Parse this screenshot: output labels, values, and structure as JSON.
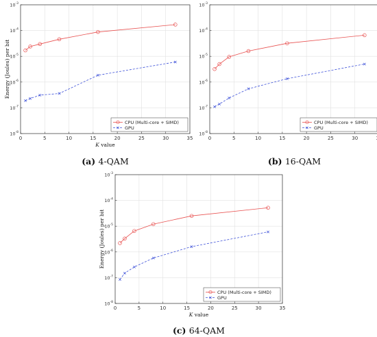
{
  "chart_data": [
    {
      "type": "line",
      "caption_tag": "(a)",
      "caption_label": "4-QAM",
      "xlabel": "K value",
      "ylabel": "Energy (Joules) per bit",
      "xlim": [
        0,
        35
      ],
      "ylim": [
        1e-08,
        0.001
      ],
      "yscale": "log",
      "xticks": [
        "0",
        "5",
        "10",
        "15",
        "20",
        "25",
        "30",
        "35"
      ],
      "yticks": [
        {
          "base": "10",
          "exp": "-8"
        },
        {
          "base": "10",
          "exp": "-7"
        },
        {
          "base": "10",
          "exp": "-6"
        },
        {
          "base": "10",
          "exp": "-5"
        },
        {
          "base": "10",
          "exp": "-4"
        },
        {
          "base": "10",
          "exp": "-3"
        }
      ],
      "grid": true,
      "legend_position": "bottom-right",
      "x": [
        1,
        2,
        4,
        8,
        16,
        32
      ],
      "series": [
        {
          "name": "CPU (Multi-core + SIMD)",
          "color": "#e8504f",
          "marker": "circle",
          "dash": "solid",
          "values": [
            1.7e-05,
            2.4e-05,
            3e-05,
            4.6e-05,
            8.8e-05,
            0.00017
          ]
        },
        {
          "name": "GPU",
          "color": "#3b4fd8",
          "marker": "x",
          "dash": "dashed",
          "values": [
            1.9e-07,
            2.3e-07,
            3.1e-07,
            3.6e-07,
            1.85e-06,
            6e-06
          ]
        }
      ]
    },
    {
      "type": "line",
      "caption_tag": "(b)",
      "caption_label": "16-QAM",
      "xlabel": "",
      "ylabel": "",
      "xlim": [
        0,
        35
      ],
      "ylim": [
        1e-08,
        0.001
      ],
      "yscale": "log",
      "xticks": [
        "0",
        "5",
        "10",
        "15",
        "20",
        "25",
        "30",
        "35"
      ],
      "yticks": [
        {
          "base": "10",
          "exp": "-8"
        },
        {
          "base": "10",
          "exp": "-7"
        },
        {
          "base": "10",
          "exp": "-6"
        },
        {
          "base": "10",
          "exp": "-5"
        },
        {
          "base": "10",
          "exp": "-4"
        },
        {
          "base": "10",
          "exp": "-3"
        }
      ],
      "grid": true,
      "legend_position": "bottom-right",
      "x": [
        1,
        2,
        4,
        8,
        16,
        32
      ],
      "series": [
        {
          "name": "CPU (Multi-core + SIMD)",
          "color": "#e8504f",
          "marker": "circle",
          "dash": "solid",
          "values": [
            3.2e-06,
            5e-06,
            9.5e-06,
            1.6e-05,
            3.2e-05,
            6.6e-05
          ]
        },
        {
          "name": "GPU",
          "color": "#3b4fd8",
          "marker": "x",
          "dash": "dashed",
          "values": [
            1.1e-07,
            1.4e-07,
            2.4e-07,
            5.5e-07,
            1.35e-06,
            5e-06
          ]
        }
      ]
    },
    {
      "type": "line",
      "caption_tag": "(c)",
      "caption_label": "64-QAM",
      "xlabel": "K value",
      "ylabel": "Energy (Joules) per bit",
      "xlim": [
        0,
        35
      ],
      "ylim": [
        1e-08,
        0.001
      ],
      "yscale": "log",
      "xticks": [
        "0",
        "5",
        "10",
        "15",
        "20",
        "25",
        "30",
        "35"
      ],
      "yticks": [
        {
          "base": "10",
          "exp": "-8"
        },
        {
          "base": "10",
          "exp": "-7"
        },
        {
          "base": "10",
          "exp": "-6"
        },
        {
          "base": "10",
          "exp": "-5"
        },
        {
          "base": "10",
          "exp": "-4"
        },
        {
          "base": "10",
          "exp": "-3"
        }
      ],
      "grid": true,
      "legend_position": "bottom-right",
      "x": [
        1,
        2,
        4,
        8,
        16,
        32
      ],
      "series": [
        {
          "name": "CPU (Multi-core + SIMD)",
          "color": "#e8504f",
          "marker": "circle",
          "dash": "solid",
          "values": [
            2.2e-06,
            3.3e-06,
            6.5e-06,
            1.2e-05,
            2.5e-05,
            5.2e-05
          ]
        },
        {
          "name": "GPU",
          "color": "#3b4fd8",
          "marker": "x",
          "dash": "dashed",
          "values": [
            8.5e-08,
            1.5e-07,
            2.6e-07,
            5.8e-07,
            1.6e-06,
            6e-06
          ]
        }
      ]
    }
  ]
}
